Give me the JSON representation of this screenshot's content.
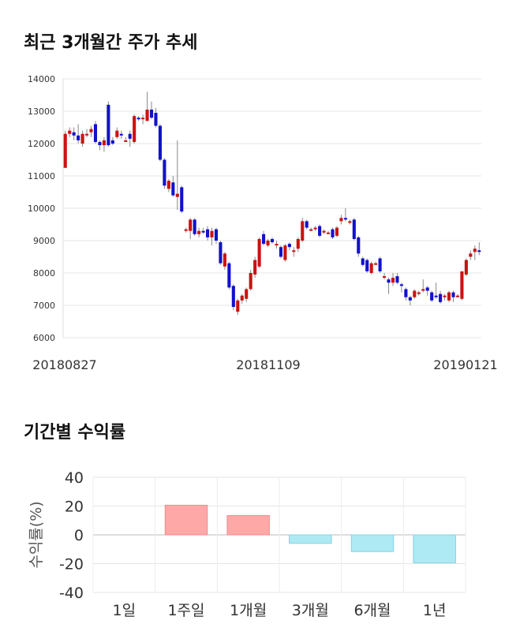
{
  "sections": {
    "price_title": "최근 3개월간 주가 추세",
    "return_title": "기간별 수익률"
  },
  "chart_data": [
    {
      "type": "candlestick",
      "title": "최근 3개월간 주가 추세",
      "ylim": [
        6000,
        14000
      ],
      "yticks": [
        6000,
        7000,
        8000,
        9000,
        10000,
        11000,
        12000,
        13000,
        14000
      ],
      "xticks": [
        "20180827",
        "20181109",
        "20190121"
      ],
      "grid": true,
      "colors": {
        "up": "#cc1111",
        "down": "#1111cc",
        "wick": "#888888"
      },
      "candles": [
        [
          11250,
          12300,
          12400,
          11250
        ],
        [
          12300,
          12400,
          12500,
          12200
        ],
        [
          12350,
          12250,
          12500,
          12100
        ],
        [
          12250,
          12100,
          12600,
          12000
        ],
        [
          12000,
          12300,
          12400,
          11900
        ],
        [
          12300,
          12300,
          12450,
          12200
        ],
        [
          12350,
          12450,
          12550,
          12200
        ],
        [
          12600,
          12050,
          12700,
          12000
        ],
        [
          12050,
          11950,
          12100,
          11800
        ],
        [
          11950,
          12100,
          12200,
          11750
        ],
        [
          13200,
          11950,
          13300,
          11900
        ],
        [
          12100,
          12000,
          12200,
          11950
        ],
        [
          12200,
          12400,
          12500,
          12150
        ],
        [
          12300,
          12250,
          12400,
          12150
        ],
        [
          12100,
          12100,
          12200,
          12050
        ],
        [
          12300,
          12150,
          12400,
          11900
        ],
        [
          12050,
          12850,
          12900,
          12000
        ],
        [
          12800,
          12750,
          12850,
          12700
        ],
        [
          12800,
          12800,
          12900,
          12600
        ],
        [
          12700,
          13050,
          13600,
          12700
        ],
        [
          13050,
          12800,
          13300,
          12750
        ],
        [
          12950,
          12550,
          13100,
          12500
        ],
        [
          12550,
          11500,
          12600,
          11450
        ],
        [
          11500,
          10700,
          11550,
          10600
        ],
        [
          10600,
          10850,
          10900,
          10500
        ],
        [
          10800,
          10400,
          11000,
          10350
        ],
        [
          10350,
          10450,
          12100,
          9950
        ],
        [
          10650,
          9900,
          10700,
          9850
        ],
        [
          9300,
          9350,
          9400,
          9250
        ],
        [
          9300,
          9650,
          9700,
          9050
        ],
        [
          9650,
          9200,
          9700,
          9150
        ],
        [
          9200,
          9300,
          9400,
          9100
        ],
        [
          9300,
          9250,
          9400,
          9200
        ],
        [
          9350,
          9100,
          9450,
          9000
        ],
        [
          9100,
          9300,
          9400,
          8850
        ],
        [
          9350,
          9000,
          9400,
          8900
        ],
        [
          8950,
          8300,
          9000,
          8250
        ],
        [
          8200,
          8600,
          8650,
          8100
        ],
        [
          8300,
          7550,
          8350,
          7500
        ],
        [
          7600,
          6950,
          7650,
          6850
        ],
        [
          6800,
          7150,
          7200,
          6700
        ],
        [
          7150,
          7300,
          7350,
          7050
        ],
        [
          7200,
          7500,
          7550,
          7100
        ],
        [
          7500,
          8000,
          8100,
          7450
        ],
        [
          7950,
          8400,
          8500,
          7850
        ],
        [
          8200,
          9050,
          9100,
          8150
        ],
        [
          9200,
          8900,
          9300,
          8850
        ],
        [
          8850,
          9000,
          9050,
          8800
        ],
        [
          9050,
          8950,
          9100,
          8900
        ],
        [
          8850,
          8900,
          9000,
          8750
        ],
        [
          8800,
          8500,
          8850,
          8450
        ],
        [
          8400,
          8850,
          8900,
          8350
        ],
        [
          8900,
          8800,
          8950,
          8700
        ],
        [
          8650,
          8700,
          8800,
          8500
        ],
        [
          8750,
          9050,
          9100,
          8650
        ],
        [
          9000,
          9600,
          9700,
          8950
        ],
        [
          9600,
          9400,
          9650,
          9350
        ],
        [
          9350,
          9350,
          9400,
          9300
        ],
        [
          9350,
          9400,
          9450,
          9300
        ],
        [
          9450,
          9150,
          9500,
          9100
        ],
        [
          9250,
          9300,
          9350,
          9200
        ],
        [
          9250,
          9250,
          9300,
          9200
        ],
        [
          9350,
          9100,
          9400,
          9050
        ],
        [
          9150,
          9400,
          9450,
          9100
        ],
        [
          9600,
          9700,
          9800,
          9500
        ],
        [
          9700,
          9650,
          10000,
          9600
        ],
        [
          9550,
          9600,
          9650,
          9500
        ],
        [
          9650,
          9050,
          9700,
          9000
        ],
        [
          9100,
          8600,
          9150,
          8500
        ],
        [
          8450,
          8250,
          8500,
          8200
        ],
        [
          8400,
          8050,
          8450,
          8000
        ],
        [
          8000,
          8300,
          8350,
          7950
        ],
        [
          8300,
          8300,
          8350,
          8250
        ],
        [
          8450,
          8050,
          8500,
          8000
        ],
        [
          7900,
          7900,
          8000,
          7800
        ],
        [
          7800,
          7700,
          7850,
          7350
        ],
        [
          7700,
          7850,
          8000,
          7600
        ],
        [
          7900,
          7700,
          8000,
          7650
        ],
        [
          7650,
          7600,
          7700,
          7400
        ],
        [
          7500,
          7250,
          7550,
          7150
        ],
        [
          7250,
          7150,
          7300,
          7000
        ],
        [
          7250,
          7450,
          7500,
          7200
        ],
        [
          7350,
          7400,
          7450,
          7300
        ],
        [
          7450,
          7500,
          7800,
          7400
        ],
        [
          7550,
          7450,
          7600,
          7300
        ],
        [
          7400,
          7150,
          7450,
          7100
        ],
        [
          7300,
          7250,
          7700,
          7200
        ],
        [
          7350,
          7100,
          7450,
          7050
        ],
        [
          7250,
          7300,
          7350,
          7150
        ],
        [
          7150,
          7400,
          7450,
          7100
        ],
        [
          7400,
          7250,
          7450,
          7100
        ],
        [
          7300,
          7300,
          7350,
          7250
        ],
        [
          7200,
          8050,
          8050,
          7150
        ],
        [
          7950,
          8400,
          8450,
          7900
        ],
        [
          8500,
          8600,
          8700,
          8400
        ],
        [
          8650,
          8750,
          8850,
          8400
        ],
        [
          8700,
          8650,
          8950,
          8550
        ]
      ]
    },
    {
      "type": "bar",
      "title": "기간별 수익률",
      "categories": [
        "1일",
        "1주일",
        "1개월",
        "3개월",
        "6개월",
        "1년"
      ],
      "values": [
        0,
        20.6,
        13.4,
        -5.9,
        -11.6,
        -19.4
      ],
      "ylabel": "수익률(%)",
      "ylim": [
        -40,
        40
      ],
      "yticks": [
        -40,
        -20,
        0,
        20,
        40
      ],
      "colors": {
        "positive": "#ffa8a8",
        "negative": "#aeeaf4"
      }
    }
  ]
}
